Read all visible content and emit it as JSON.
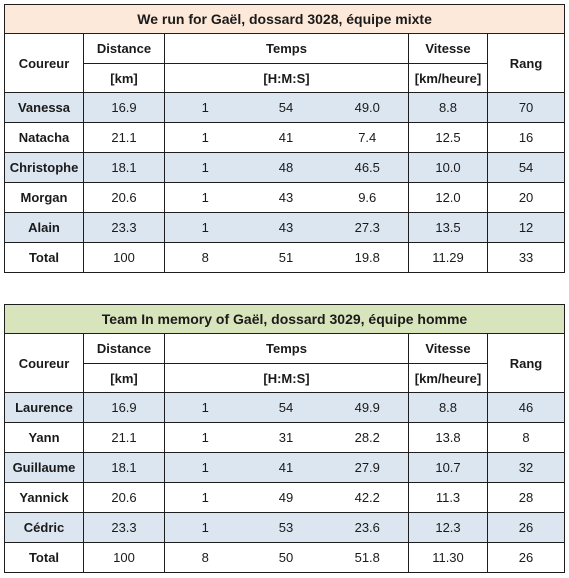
{
  "tables": [
    {
      "title": "We run for Gaël, dossard 3028, équipe mixte",
      "colors": {
        "title_bg": "#fde9d9",
        "shade_bg": "#dce6f1"
      },
      "headers": {
        "coureur": "Coureur",
        "distance": "Distance",
        "distance_unit": "[km]",
        "temps": "Temps",
        "temps_unit": "[H:M:S]",
        "vitesse": "Vitesse",
        "vitesse_unit": "[km/heure]",
        "rang": "Rang"
      },
      "rows": [
        {
          "name": "Vanessa",
          "distance": "16.9",
          "h": "1",
          "m": "54",
          "s": "49.0",
          "vitesse": "8.8",
          "rang": "70"
        },
        {
          "name": "Natacha",
          "distance": "21.1",
          "h": "1",
          "m": "41",
          "s": "7.4",
          "vitesse": "12.5",
          "rang": "16"
        },
        {
          "name": "Christophe",
          "distance": "18.1",
          "h": "1",
          "m": "48",
          "s": "46.5",
          "vitesse": "10.0",
          "rang": "54"
        },
        {
          "name": "Morgan",
          "distance": "20.6",
          "h": "1",
          "m": "43",
          "s": "9.6",
          "vitesse": "12.0",
          "rang": "20"
        },
        {
          "name": "Alain",
          "distance": "23.3",
          "h": "1",
          "m": "43",
          "s": "27.3",
          "vitesse": "13.5",
          "rang": "12"
        }
      ],
      "total": {
        "name": "Total",
        "distance": "100",
        "h": "8",
        "m": "51",
        "s": "19.8",
        "vitesse": "11.29",
        "rang": "33"
      }
    },
    {
      "title": "Team In memory of Gaël, dossard 3029, équipe homme",
      "colors": {
        "title_bg": "#d8e4bc",
        "shade_bg": "#dce6f1"
      },
      "headers": {
        "coureur": "Coureur",
        "distance": "Distance",
        "distance_unit": "[km]",
        "temps": "Temps",
        "temps_unit": "[H:M:S]",
        "vitesse": "Vitesse",
        "vitesse_unit": "[km/heure]",
        "rang": "Rang"
      },
      "rows": [
        {
          "name": "Laurence",
          "distance": "16.9",
          "h": "1",
          "m": "54",
          "s": "49.9",
          "vitesse": "8.8",
          "rang": "46"
        },
        {
          "name": "Yann",
          "distance": "21.1",
          "h": "1",
          "m": "31",
          "s": "28.2",
          "vitesse": "13.8",
          "rang": "8"
        },
        {
          "name": "Guillaume",
          "distance": "18.1",
          "h": "1",
          "m": "41",
          "s": "27.9",
          "vitesse": "10.7",
          "rang": "32"
        },
        {
          "name": "Yannick",
          "distance": "20.6",
          "h": "1",
          "m": "49",
          "s": "42.2",
          "vitesse": "11.3",
          "rang": "28"
        },
        {
          "name": "Cédric",
          "distance": "23.3",
          "h": "1",
          "m": "53",
          "s": "23.6",
          "vitesse": "12.3",
          "rang": "26"
        }
      ],
      "total": {
        "name": "Total",
        "distance": "100",
        "h": "8",
        "m": "50",
        "s": "51.8",
        "vitesse": "11.30",
        "rang": "26"
      }
    }
  ]
}
